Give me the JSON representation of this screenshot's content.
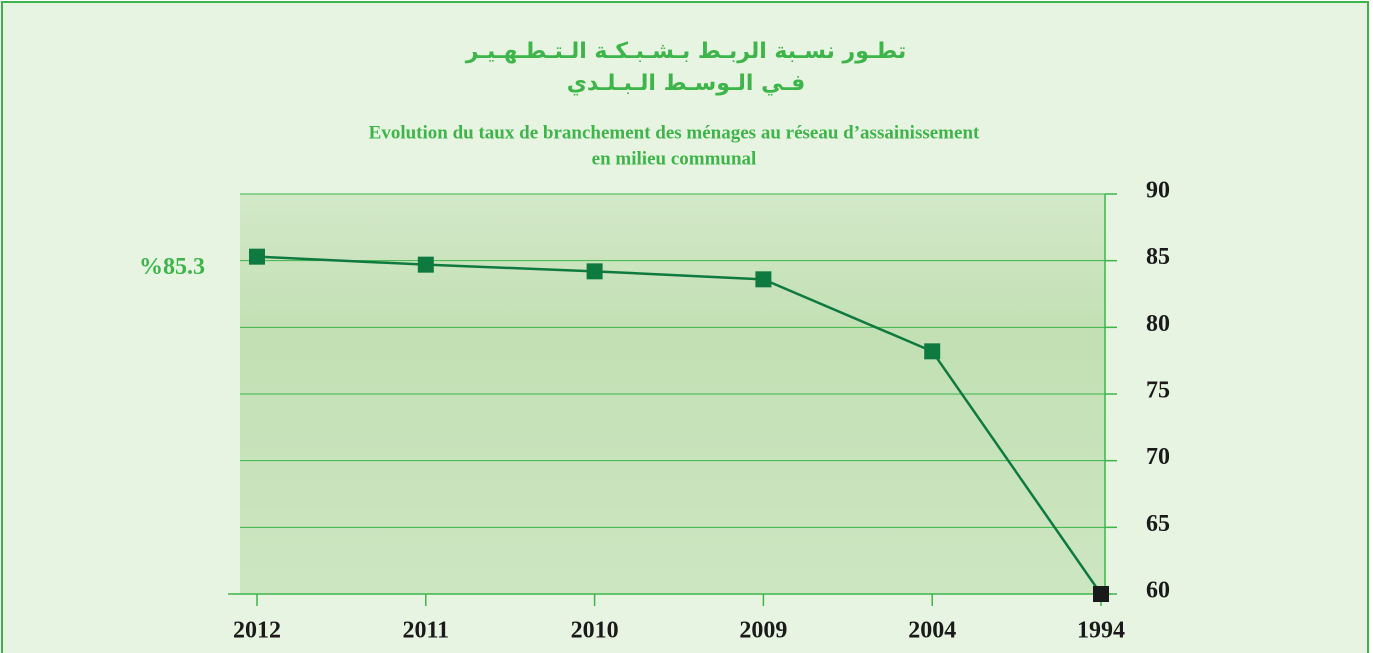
{
  "chart_data": {
    "type": "line",
    "title": [
      "تطـور نسـبة الربـط بـشـبـكـة الـتـطـهـيـر",
      "فـي الـوسـط الـبـلـدي"
    ],
    "subtitle": [
      "Evolution du taux de branchement des ménages au réseau d’assainissement",
      "en milieu communal"
    ],
    "categories": [
      "2012",
      "2011",
      "2010",
      "2009",
      "2004",
      "1994"
    ],
    "values": [
      85.3,
      84.7,
      84.2,
      83.6,
      78.2,
      60
    ],
    "value_labels": [
      "%85.3",
      null,
      null,
      null,
      null,
      null
    ],
    "color": "#0f7a3f",
    "marker_colors": [
      "#0f7a3f",
      "#0f7a3f",
      "#0f7a3f",
      "#0f7a3f",
      "#0f7a3f",
      "#1a1a1a"
    ],
    "ylim": [
      60,
      90
    ],
    "yticks": [
      60,
      65,
      70,
      75,
      80,
      85,
      90
    ],
    "grid": true
  }
}
